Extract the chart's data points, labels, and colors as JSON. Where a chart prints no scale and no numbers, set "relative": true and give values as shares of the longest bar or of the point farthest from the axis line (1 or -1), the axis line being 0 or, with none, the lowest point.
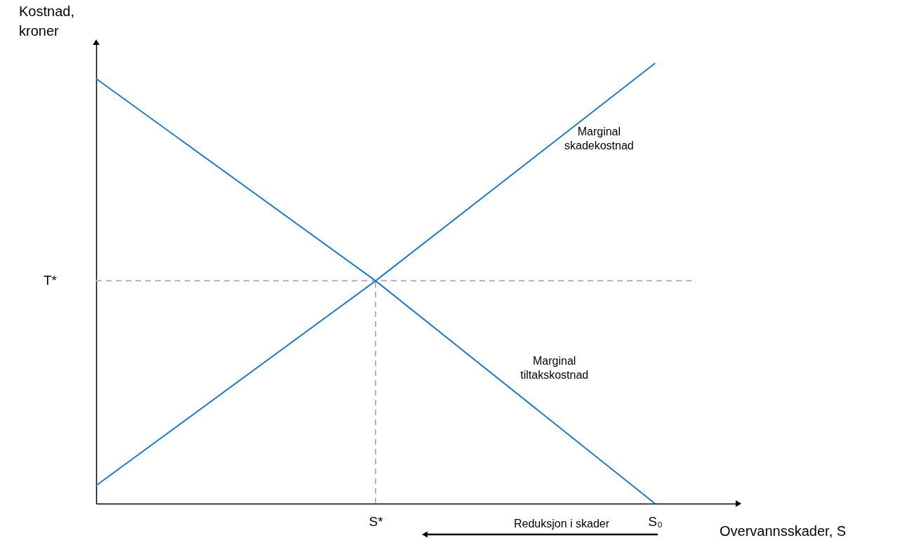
{
  "chart_data": {
    "type": "line",
    "relative": true,
    "xlabel": "Overvannsskader, S",
    "ylabel": "Kostnad, kroner",
    "categories": [
      null,
      "S*",
      "S₀"
    ],
    "series": [
      {
        "name": "Marginal skadekostnad",
        "color": "#1f7bc1",
        "values": [
          0.041,
          0.506,
          1
        ]
      },
      {
        "name": "Marginal tiltakskostnad",
        "color": "#1f7bc1",
        "values": [
          0.965,
          0.506,
          0
        ]
      }
    ],
    "ref_lines": [
      {
        "axis": "y",
        "value": 0.506,
        "label": "T*",
        "color": "#b3b3b3",
        "line_style": "dashed"
      },
      {
        "axis": "x",
        "value": "S*",
        "color": "#b3b3b3",
        "line_style": "dashed"
      }
    ],
    "annotations": [
      "Reduksjon i skader"
    ],
    "legend": false,
    "grid": false,
    "marker": "none",
    "line_style": "solid"
  }
}
